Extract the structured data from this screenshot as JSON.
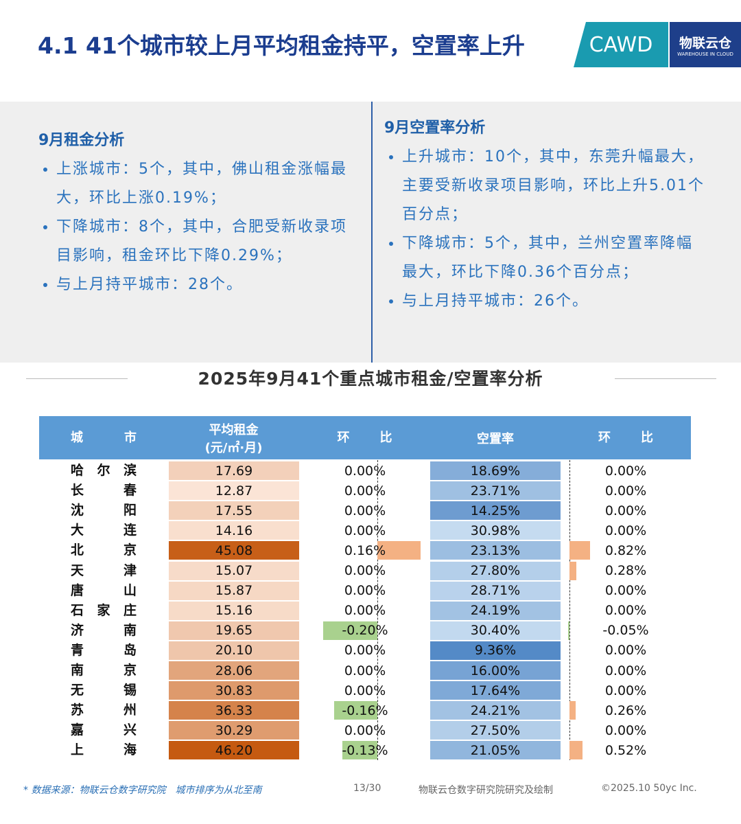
{
  "header": {
    "title": "4.1 41个城市较上月平均租金持平，空置率上升",
    "logo_left": "CAWD",
    "logo_right": "物联云仓",
    "logo_right_sub": "WAREHOUSE IN CLOUD"
  },
  "panels": [
    {
      "title": "9月租金分析",
      "bullets": [
        "上涨城市：5个，其中，佛山租金涨幅最大，环比上涨0.19%；",
        "下降城市：8个，其中，合肥受新收录项目影响，租金环比下降0.29%；",
        "与上月持平城市：28个。"
      ]
    },
    {
      "title": "9月空置率分析",
      "bullets": [
        "上升城市：10个，其中，东莞升幅最大，主要受新收录项目影响，环比上升5.01个百分点；",
        "下降城市：5个，其中，兰州空置率降幅最大，环比下降0.36个百分点；",
        "与上月持平城市：26个。"
      ]
    }
  ],
  "table": {
    "title": "2025年9月41个重点城市租金/空置率分析",
    "headers": [
      "城市",
      "平均租金",
      "(元/㎡·月)",
      "环比",
      "空置率",
      "环比"
    ],
    "rows": [
      [
        "哈尔滨",
        "17.69",
        "0.00%",
        "18.69%",
        "0.00%"
      ],
      [
        "长春",
        "12.87",
        "0.00%",
        "23.71%",
        "0.00%"
      ],
      [
        "沈阳",
        "17.55",
        "0.00%",
        "14.25%",
        "0.00%"
      ],
      [
        "大连",
        "14.16",
        "0.00%",
        "30.98%",
        "0.00%"
      ],
      [
        "北京",
        "45.08",
        "0.16%",
        "23.13%",
        "0.82%"
      ],
      [
        "天津",
        "15.07",
        "0.00%",
        "27.80%",
        "0.28%"
      ],
      [
        "唐山",
        "15.87",
        "0.00%",
        "28.71%",
        "0.00%"
      ],
      [
        "石家庄",
        "15.16",
        "0.00%",
        "24.19%",
        "0.00%"
      ],
      [
        "济南",
        "19.65",
        "-0.20%",
        "30.40%",
        "-0.05%"
      ],
      [
        "青岛",
        "20.10",
        "0.00%",
        "9.36%",
        "0.00%"
      ],
      [
        "南京",
        "28.06",
        "0.00%",
        "16.00%",
        "0.00%"
      ],
      [
        "无锡",
        "30.83",
        "0.00%",
        "17.64%",
        "0.00%"
      ],
      [
        "苏州",
        "36.33",
        "-0.16%",
        "24.21%",
        "0.26%"
      ],
      [
        "嘉兴",
        "30.29",
        "0.00%",
        "27.50%",
        "0.00%"
      ],
      [
        "上海",
        "46.20",
        "-0.13%",
        "21.05%",
        "0.52%"
      ]
    ]
  },
  "footer": {
    "source": "* 数据来源：物联云仓数字研究院　城市排序为从北至南",
    "page": "13/30",
    "credit": "物联云仓数字研究院研究及绘制",
    "copyright": "©2025.10 50yc Inc."
  }
}
